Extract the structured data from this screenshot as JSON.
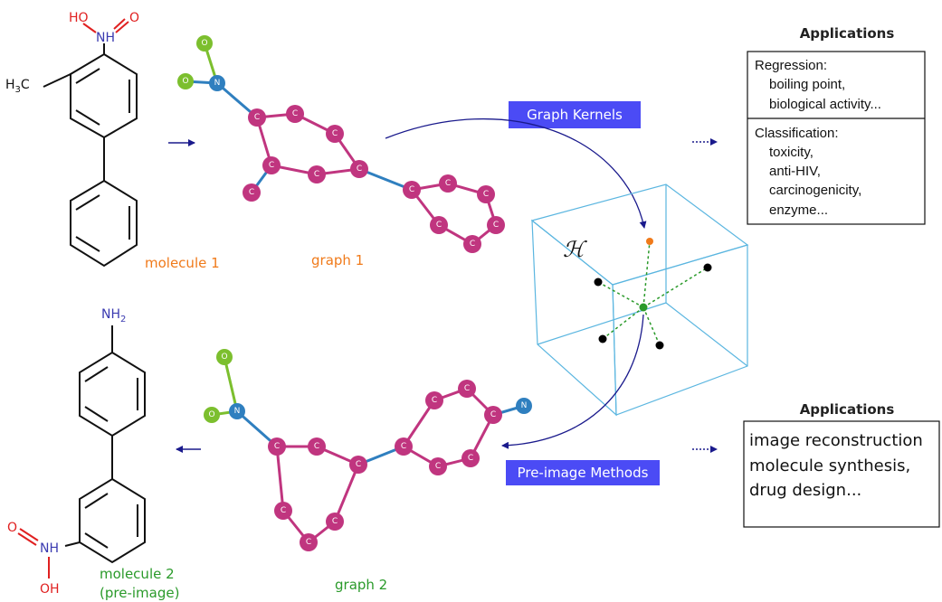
{
  "molecule1": {
    "caption": "molecule 1",
    "labels": {
      "ho": "HO",
      "nh": "NH",
      "o": "O",
      "h3c": "H",
      "h3c_sub": "3",
      "h3c_c": "C"
    }
  },
  "graph1": {
    "caption": "graph 1",
    "atom_o": "O",
    "atom_n": "N",
    "atom_c": "C"
  },
  "molecule2": {
    "caption_line1": "molecule 2",
    "caption_line2": "(pre-image)",
    "labels": {
      "nh2": "NH",
      "nh2_sub": "2",
      "o": "O",
      "nh": "NH",
      "oh": "OH"
    }
  },
  "graph2": {
    "caption": "graph 2"
  },
  "graph_kernels": {
    "label": "Graph Kernels"
  },
  "pre_image": {
    "label": "Pre-image Methods"
  },
  "hilbert_space": {
    "symbol": "ℋ"
  },
  "applications_top": {
    "title": "Applications",
    "regression_label": "Regression:",
    "regression_items": [
      "boiling point,",
      "biological activity..."
    ],
    "classification_label": "Classification:",
    "classification_items": [
      "toxicity,",
      "anti-HIV,",
      "carcinogenicity,",
      "enzyme..."
    ]
  },
  "applications_bottom": {
    "title": "Applications",
    "items": [
      "image reconstruction",
      "molecule synthesis,",
      "drug design..."
    ]
  },
  "colors": {
    "carbon": "#c0357f",
    "nitrogen": "#2f7fbf",
    "oxygen": "#7cbf2e",
    "badge": "#4b4bf5",
    "arrow": "#1a1a8c",
    "cube": "#5bb6e0",
    "caption_orange": "#f07a1a",
    "caption_green": "#2a9a2a",
    "hetero_red": "#e02020",
    "hetero_blue": "#3a3ab0"
  }
}
